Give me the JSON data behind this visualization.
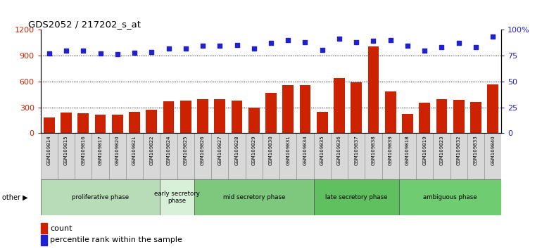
{
  "title": "GDS2052 / 217202_s_at",
  "samples": [
    "GSM109814",
    "GSM109815",
    "GSM109816",
    "GSM109817",
    "GSM109820",
    "GSM109821",
    "GSM109822",
    "GSM109824",
    "GSM109825",
    "GSM109826",
    "GSM109827",
    "GSM109828",
    "GSM109829",
    "GSM109830",
    "GSM109831",
    "GSM109834",
    "GSM109835",
    "GSM109836",
    "GSM109837",
    "GSM109838",
    "GSM109839",
    "GSM109818",
    "GSM109819",
    "GSM109823",
    "GSM109832",
    "GSM109833",
    "GSM109840"
  ],
  "counts": [
    185,
    240,
    235,
    215,
    215,
    245,
    270,
    370,
    380,
    395,
    395,
    375,
    295,
    465,
    555,
    555,
    245,
    640,
    590,
    1010,
    485,
    225,
    355,
    395,
    390,
    360,
    570
  ],
  "percentiles": [
    930,
    960,
    955,
    925,
    920,
    935,
    945,
    980,
    985,
    1020,
    1020,
    1025,
    985,
    1045,
    1080,
    1055,
    970,
    1100,
    1060,
    1075,
    1080,
    1020,
    960,
    1000,
    1050,
    1000,
    1125
  ],
  "phases": [
    {
      "label": "proliferative phase",
      "start": 0,
      "end": 7,
      "color": "#b8dcb8"
    },
    {
      "label": "early secretory\nphase",
      "start": 7,
      "end": 9,
      "color": "#d8f0d8"
    },
    {
      "label": "mid secretory phase",
      "start": 9,
      "end": 16,
      "color": "#7ec87e"
    },
    {
      "label": "late secretory phase",
      "start": 16,
      "end": 21,
      "color": "#60c060"
    },
    {
      "label": "ambiguous phase",
      "start": 21,
      "end": 27,
      "color": "#70cc70"
    }
  ],
  "bar_color": "#cc2200",
  "dot_color": "#2020cc",
  "ylim_left": [
    0,
    1200
  ],
  "ylim_right": [
    0,
    100
  ],
  "yticks_left": [
    0,
    300,
    600,
    900,
    1200
  ],
  "yticks_right": [
    0,
    25,
    50,
    75,
    100
  ],
  "grid_levels": [
    300,
    600,
    900
  ],
  "label_cell_color": "#d8d8d8",
  "label_cell_edge_color": "#888888"
}
